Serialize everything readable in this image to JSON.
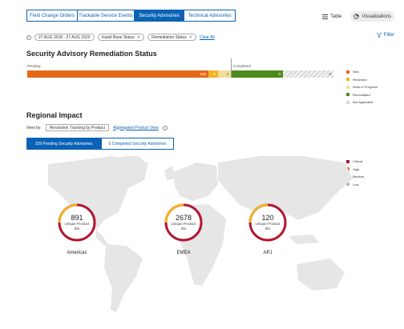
{
  "tabs": [
    {
      "label": "Field Change Orders",
      "active": false
    },
    {
      "label": "Trackable Service Events",
      "active": false
    },
    {
      "label": "Security Advisories",
      "active": true
    },
    {
      "label": "Technical Advisories",
      "active": false
    }
  ],
  "view_toggle": {
    "table_label": "Table",
    "visualizations_label": "Visualizations",
    "active": "Visualizations"
  },
  "filters": {
    "date_range": "27 AUG 2018 - 27 AUG 2020",
    "chip_install_base": "Install Base Status",
    "chip_remediation": "Remediation Status",
    "clear_all": "Clear All",
    "filter_label": "Filter"
  },
  "remediation": {
    "title": "Security Advisory Remediation Status",
    "pending_label": "Pending",
    "completed_label": "Completed",
    "pending_segments": [
      {
        "status": "New",
        "value": 102,
        "label": "102",
        "color": "#e46a17"
      },
      {
        "status": "Reviewed",
        "value": 5,
        "label": "5",
        "color": "#f0b32a"
      },
      {
        "status": "Work In Progress",
        "value": 2,
        "label": "2",
        "color": "#f2dd9a"
      }
    ],
    "completed_segments": [
      {
        "status": "Remediated",
        "value": 0,
        "label": "0",
        "color": "#4d8a1c"
      },
      {
        "status": "Not Applicable",
        "value": 0,
        "label": "0",
        "color": "#d9d9d9"
      }
    ],
    "legend": [
      {
        "label": "New",
        "color": "#e46a17"
      },
      {
        "label": "Reviewed",
        "color": "#f0b32a"
      },
      {
        "label": "Work In Progress",
        "color": "#f2dd9a"
      },
      {
        "label": "Remediated",
        "color": "#4d8a1c"
      },
      {
        "label": "Not Applicable",
        "color": "#d9d9d9"
      }
    ]
  },
  "regional": {
    "title": "Regional Impact",
    "view_by_label": "View by:",
    "view_by_selected": "Resolution Tracking by Product",
    "view_by_alt": "Aggregated Product View",
    "subtab_pending": "109 Pending Security Advisories",
    "subtab_completed": "0 Completed Security Advisories",
    "severity_legend": [
      {
        "label": "Critical",
        "color": "#b3172f"
      },
      {
        "label": "High",
        "color": "#e0752a"
      },
      {
        "label": "Medium",
        "color": "#f0c040"
      },
      {
        "label": "Low",
        "color": "#b5b5b5"
      }
    ],
    "regions": [
      {
        "name": "Americas",
        "count": "891",
        "sub": "Unique Product IDs"
      },
      {
        "name": "EMEA",
        "count": "2678",
        "sub": "Unique Product IDs"
      },
      {
        "name": "APJ",
        "count": "120",
        "sub": "Unique Product IDs"
      }
    ]
  }
}
